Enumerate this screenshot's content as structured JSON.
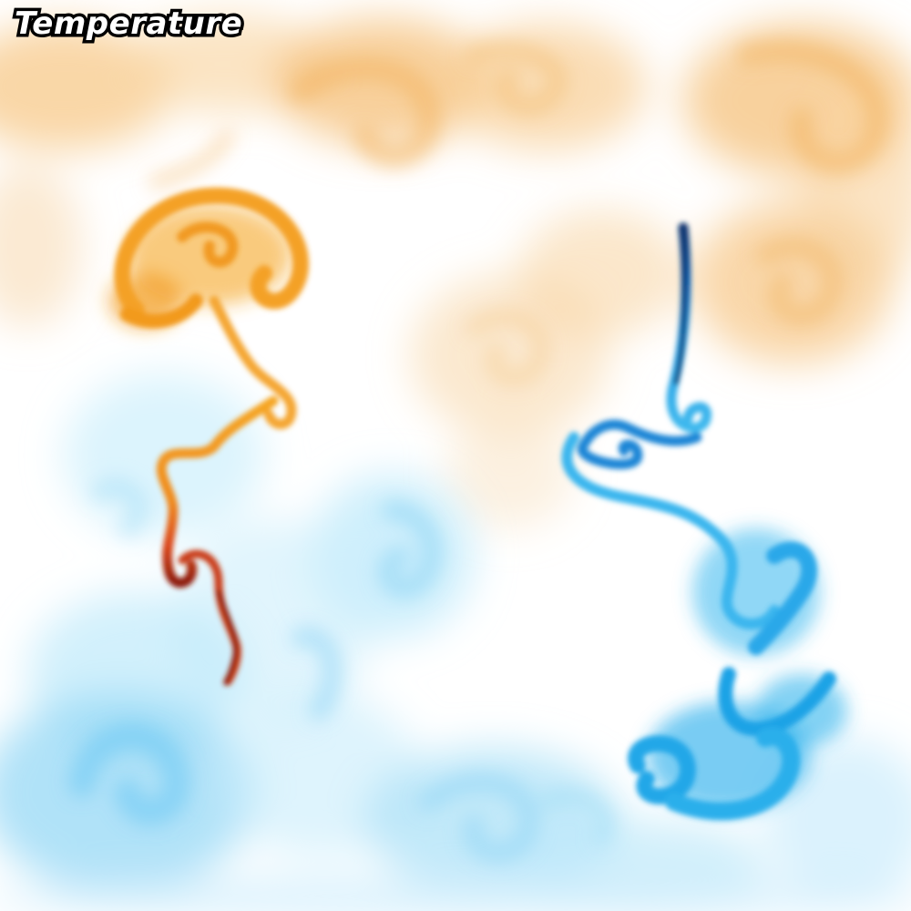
{
  "title": "Temperature",
  "colors": {
    "background": "#ffffff",
    "warm_light": "#f7c98a",
    "warm_mid": "#f5a623",
    "warm_hot": "#e0661a",
    "warm_core": "#a0220c",
    "cool_light": "#bfe9fb",
    "cool_mid": "#37b7ee",
    "cool_deep": "#1e86d6",
    "cool_core": "#0a3c80"
  },
  "icons": {
    "hot_plume": "hot-plume-icon",
    "cold_plume": "cold-plume-icon"
  }
}
